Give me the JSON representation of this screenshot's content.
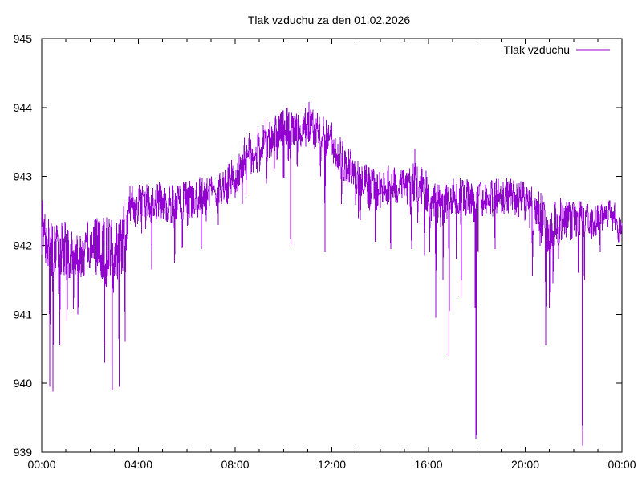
{
  "window": {
    "background": "#ffffff"
  },
  "chart_data": {
    "type": "line",
    "title": "Tlak vzduchu za den 01.02.2026",
    "xlabel": "",
    "ylabel": "",
    "x_unit": "hours_of_day",
    "xlim": [
      0,
      24
    ],
    "ylim": [
      939,
      945
    ],
    "grid": false,
    "axis_color": "#000000",
    "legend_position": "top-right-inside",
    "yticks": [
      "945",
      "944",
      "943",
      "942",
      "941",
      "940",
      "939"
    ],
    "ytick_values": [
      945,
      944,
      943,
      942,
      941,
      940,
      939
    ],
    "xticks": [
      {
        "t": 0,
        "label": "00:00"
      },
      {
        "t": 4,
        "label": "04:00"
      },
      {
        "t": 8,
        "label": "08:00"
      },
      {
        "t": 12,
        "label": "12:00"
      },
      {
        "t": 16,
        "label": "16:00"
      },
      {
        "t": 20,
        "label": "20:00"
      },
      {
        "t": 24,
        "label": "00:00"
      }
    ],
    "minor_xtick_hours": [
      1,
      2,
      3,
      5,
      6,
      7,
      9,
      10,
      11,
      13,
      14,
      15,
      17,
      18,
      19,
      21,
      22,
      23
    ],
    "legend": {
      "label": "Tlak vzduchu"
    },
    "series": [
      {
        "name": "Tlak vzduchu",
        "color": "#9400d3",
        "sample_interval_minutes": 1,
        "unit": "hPa",
        "trend_points": [
          [
            0,
            942.2
          ],
          [
            0.25,
            941.95
          ],
          [
            0.5,
            941.9
          ],
          [
            1,
            941.95
          ],
          [
            1.5,
            941.85
          ],
          [
            2,
            942.0
          ],
          [
            2.5,
            941.95
          ],
          [
            3,
            941.85
          ],
          [
            3.25,
            942.0
          ],
          [
            3.6,
            942.45
          ],
          [
            4,
            942.6
          ],
          [
            4.5,
            942.6
          ],
          [
            5,
            942.65
          ],
          [
            5.5,
            942.6
          ],
          [
            6,
            942.65
          ],
          [
            6.5,
            942.7
          ],
          [
            7,
            942.75
          ],
          [
            7.5,
            942.85
          ],
          [
            8,
            943.0
          ],
          [
            8.5,
            943.3
          ],
          [
            9,
            943.4
          ],
          [
            9.5,
            943.6
          ],
          [
            10,
            943.7
          ],
          [
            10.5,
            943.65
          ],
          [
            11,
            943.75
          ],
          [
            11.5,
            943.6
          ],
          [
            12,
            943.5
          ],
          [
            12.5,
            943.25
          ],
          [
            13,
            943.0
          ],
          [
            13.5,
            942.85
          ],
          [
            14,
            942.8
          ],
          [
            14.5,
            942.85
          ],
          [
            15,
            942.9
          ],
          [
            15.5,
            942.9
          ],
          [
            16,
            942.7
          ],
          [
            16.5,
            942.55
          ],
          [
            17,
            942.7
          ],
          [
            17.5,
            942.7
          ],
          [
            18,
            942.6
          ],
          [
            18.5,
            942.7
          ],
          [
            19,
            942.7
          ],
          [
            19.5,
            942.7
          ],
          [
            20,
            942.65
          ],
          [
            20.5,
            942.45
          ],
          [
            21,
            942.2
          ],
          [
            21.5,
            942.35
          ],
          [
            22,
            942.4
          ],
          [
            22.5,
            942.35
          ],
          [
            23,
            942.4
          ],
          [
            23.5,
            942.5
          ],
          [
            24,
            942.2
          ]
        ],
        "noise_halfwidth_points": [
          [
            0,
            0.5
          ],
          [
            0.5,
            0.45
          ],
          [
            1,
            0.4
          ],
          [
            2,
            0.38
          ],
          [
            2.6,
            0.55
          ],
          [
            3.4,
            0.55
          ],
          [
            4,
            0.3
          ],
          [
            5,
            0.28
          ],
          [
            6,
            0.3
          ],
          [
            7,
            0.28
          ],
          [
            8,
            0.32
          ],
          [
            9,
            0.35
          ],
          [
            10,
            0.3
          ],
          [
            11,
            0.3
          ],
          [
            12,
            0.3
          ],
          [
            12.5,
            0.35
          ],
          [
            13,
            0.3
          ],
          [
            14,
            0.32
          ],
          [
            15,
            0.3
          ],
          [
            15.5,
            0.35
          ],
          [
            16,
            0.35
          ],
          [
            17,
            0.3
          ],
          [
            18,
            0.28
          ],
          [
            19,
            0.28
          ],
          [
            20,
            0.3
          ],
          [
            20.75,
            0.45
          ],
          [
            21.25,
            0.4
          ],
          [
            22,
            0.3
          ],
          [
            23,
            0.25
          ],
          [
            24,
            0.25
          ]
        ],
        "extreme_points": [
          [
            0.33,
            939.95
          ],
          [
            0.47,
            939.88
          ],
          [
            0.75,
            940.55
          ],
          [
            1.05,
            940.9
          ],
          [
            1.5,
            941.0
          ],
          [
            2.6,
            940.3
          ],
          [
            2.92,
            939.9
          ],
          [
            3.2,
            939.95
          ],
          [
            3.45,
            940.6
          ],
          [
            4.55,
            941.65
          ],
          [
            5.5,
            941.75
          ],
          [
            6.6,
            941.95
          ],
          [
            7.3,
            942.3
          ],
          [
            8.3,
            942.6
          ],
          [
            9.3,
            942.9
          ],
          [
            10.15,
            944.0
          ],
          [
            10.3,
            942.0
          ],
          [
            11.05,
            944.08
          ],
          [
            11.72,
            941.9
          ],
          [
            12.4,
            942.6
          ],
          [
            13.8,
            942.05
          ],
          [
            14.43,
            941.95
          ],
          [
            15.3,
            941.95
          ],
          [
            15.43,
            943.4
          ],
          [
            15.83,
            941.85
          ],
          [
            16.05,
            941.9
          ],
          [
            16.3,
            940.95
          ],
          [
            16.6,
            941.5
          ],
          [
            16.85,
            940.4
          ],
          [
            17.15,
            941.8
          ],
          [
            17.35,
            941.25
          ],
          [
            17.93,
            941.1
          ],
          [
            17.97,
            939.2
          ],
          [
            18.05,
            941.9
          ],
          [
            18.75,
            941.95
          ],
          [
            20.3,
            941.55
          ],
          [
            20.85,
            940.55
          ],
          [
            21.0,
            941.1
          ],
          [
            21.15,
            941.45
          ],
          [
            22.2,
            941.6
          ],
          [
            22.37,
            939.1
          ],
          [
            22.45,
            941.5
          ],
          [
            23.1,
            941.9
          ]
        ]
      }
    ]
  }
}
